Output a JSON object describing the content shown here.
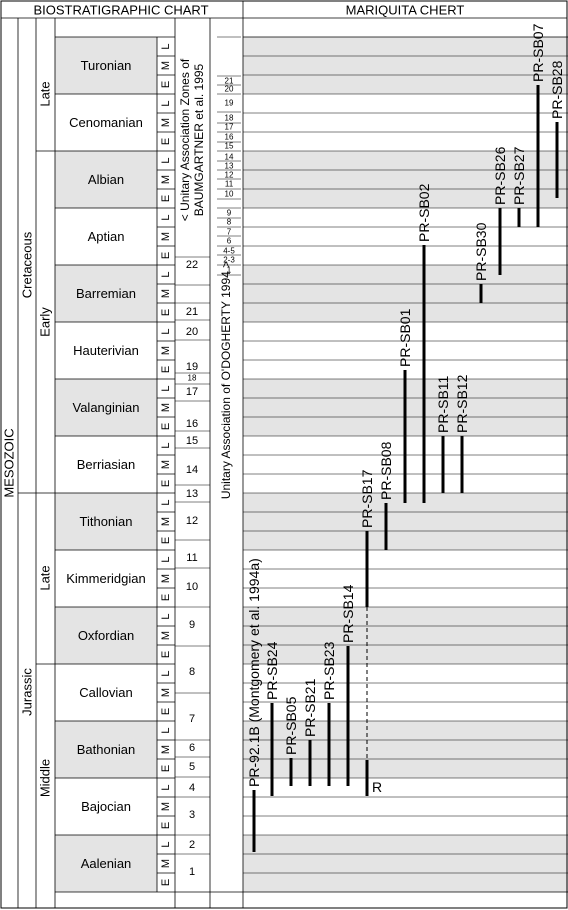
{
  "header": {
    "left": "BIOSTRATIGRAPHIC CHART",
    "right": "MARIQUITA CHERT"
  },
  "era": "MESOZOIC",
  "periods": [
    "Cretaceous",
    "Jurassic"
  ],
  "epochs": [
    "Late",
    "Early",
    "Late",
    "Middle"
  ],
  "stages": [
    "Turonian",
    "Cenomanian",
    "Albian",
    "Aptian",
    "Barremian",
    "Hauterivian",
    "Valanginian",
    "Berriasian",
    "Tithonian",
    "Kimmeridgian",
    "Oxfordian",
    "Callovian",
    "Bathonian",
    "Bajocian",
    "Aalenian"
  ],
  "substages": [
    "L",
    "M",
    "E"
  ],
  "baumgartner": {
    "title": [
      "< Unitary Association Zones of",
      "BAUMGARTNER et al. 1995"
    ],
    "zones": [
      "22",
      "21",
      "20",
      "19",
      "18",
      "17",
      "16",
      "15",
      "14",
      "13",
      "12",
      "11",
      "10",
      "9",
      "8",
      "7",
      "6",
      "5",
      "4",
      "3",
      "2",
      "1"
    ]
  },
  "odogherty": {
    "title": "Unitary Association of O'DOGHERTY 1994 >",
    "zones": [
      "21",
      "20",
      "19",
      "18",
      "17",
      "16",
      "15",
      "14",
      "13",
      "12",
      "11",
      "10",
      "9",
      "8",
      "7",
      "6",
      "4-5",
      "2-3",
      "1"
    ]
  },
  "samples": [
    "PR-92.1B (Montgomery et al. 1994a)",
    "PR-SB24",
    "PR-SB05",
    "PR-SB21",
    "PR-SB23",
    "PR-SB14",
    "PR-SB17",
    "PR-SB08",
    "PR-SB01",
    "PR-SB02",
    "PR-SB11",
    "PR-SB12",
    "PR-SB30",
    "PR-SB26",
    "PR-SB27",
    "PR-SB07",
    "PR-SB28"
  ],
  "range_note": "R"
}
